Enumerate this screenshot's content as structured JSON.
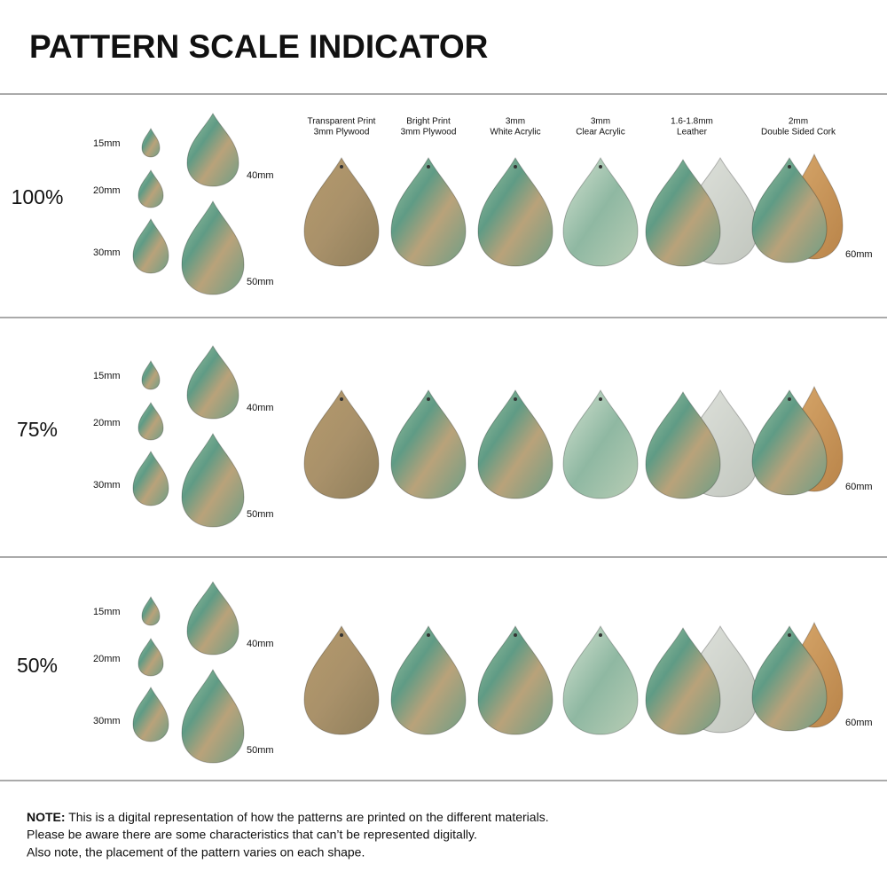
{
  "title": "PATTERN SCALE INDICATOR",
  "materials": [
    {
      "line1": "Transparent Print",
      "line2": "3mm Plywood"
    },
    {
      "line1": "Bright Print",
      "line2": "3mm Plywood"
    },
    {
      "line1": "3mm",
      "line2": "White Acrylic"
    },
    {
      "line1": "3mm",
      "line2": "Clear Acrylic"
    },
    {
      "line1": "1.6-1.8mm",
      "line2": "Leather"
    },
    {
      "line1": "2mm",
      "line2": "Double Sided Cork"
    }
  ],
  "sections": [
    {
      "scale": "100%",
      "sizes": [
        "15mm",
        "20mm",
        "30mm",
        "40mm",
        "50mm"
      ],
      "material_size": "60mm"
    },
    {
      "scale": "75%",
      "sizes": [
        "15mm",
        "20mm",
        "30mm",
        "40mm",
        "50mm"
      ],
      "material_size": "60mm"
    },
    {
      "scale": "50%",
      "sizes": [
        "15mm",
        "20mm",
        "30mm",
        "40mm",
        "50mm"
      ],
      "material_size": "60mm"
    }
  ],
  "note": {
    "label": "NOTE:",
    "lines": [
      "This is a digital representation of how the patterns are printed on the different materials.",
      "Please be aware there are some characteristics that can’t be represented digitally.",
      "Also note, the placement of the pattern varies on each shape."
    ]
  }
}
